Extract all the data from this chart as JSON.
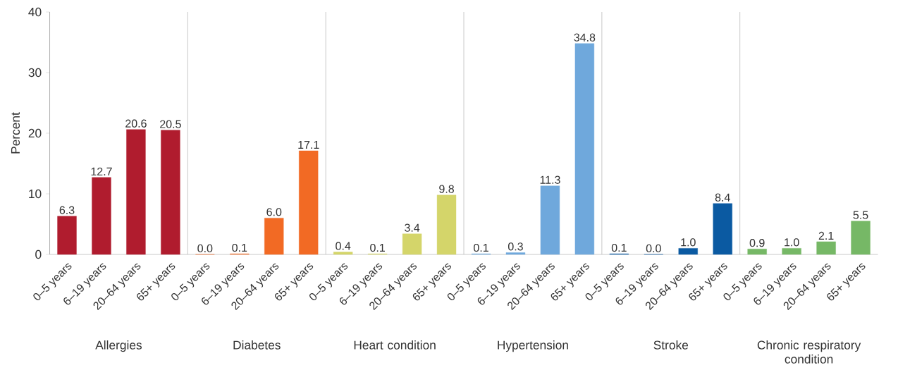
{
  "chart_data": {
    "type": "bar",
    "ylabel": "Percent",
    "ylim": [
      0,
      40
    ],
    "yticks": [
      0,
      10,
      20,
      30,
      40
    ],
    "value_labels": [
      "6.3",
      "12.7",
      "20.6",
      "20.5",
      "0.0",
      "0.1",
      "6.0",
      "17.1",
      "0.4",
      "0.1",
      "3.4",
      "9.8",
      "0.1",
      "0.3",
      "11.3",
      "34.8",
      "0.1",
      "0.0",
      "1.0",
      "8.4",
      "0.9",
      "1.0",
      "2.1",
      "5.5"
    ],
    "categories": [
      "0–5 years",
      "6–19 years",
      "20–64 years",
      "65+ years",
      "0–5 years",
      "6–19 years",
      "20–64 years",
      "65+ years",
      "0–5 years",
      "6–19 years",
      "20–64 years",
      "65+ years",
      "0–5 years",
      "6–19 years",
      "20–64 years",
      "65+ years",
      "0–5 years",
      "6–19 years",
      "20–64 years",
      "65+ years",
      "0–5 years",
      "6–19 years",
      "20–64 years",
      "65+ years"
    ],
    "values": [
      6.3,
      12.7,
      20.6,
      20.5,
      0.0,
      0.1,
      6.0,
      17.1,
      0.4,
      0.1,
      3.4,
      9.8,
      0.1,
      0.3,
      11.3,
      34.8,
      0.1,
      0.0,
      1.0,
      8.4,
      0.9,
      1.0,
      2.1,
      5.5
    ],
    "colors": [
      "#b01c2e",
      "#b01c2e",
      "#b01c2e",
      "#b01c2e",
      "#f26a24",
      "#f26a24",
      "#f26a24",
      "#f26a24",
      "#d4d56a",
      "#d4d56a",
      "#d4d56a",
      "#d4d56a",
      "#6fa8dc",
      "#6fa8dc",
      "#6fa8dc",
      "#6fa8dc",
      "#0b5aa2",
      "#0b5aa2",
      "#0b5aa2",
      "#0b5aa2",
      "#76b866",
      "#76b866",
      "#76b866",
      "#76b866"
    ],
    "annotations": [
      "Allergies",
      "Diabetes",
      "Heart condition",
      "Hypertension",
      "Stroke",
      "Chronic respiratory condition"
    ]
  }
}
